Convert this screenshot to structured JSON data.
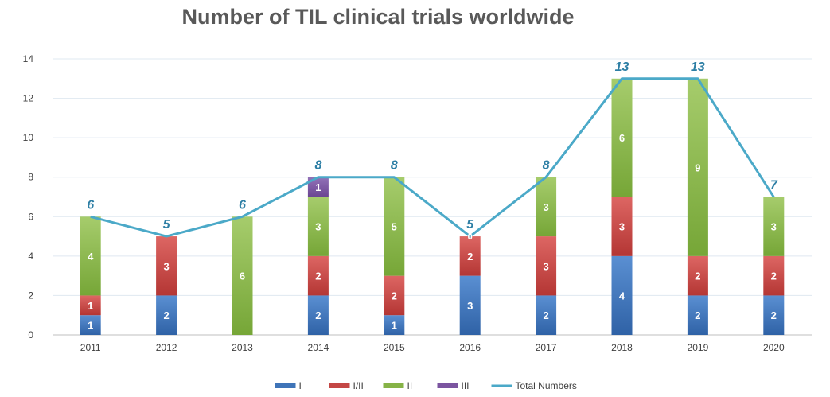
{
  "chart_data": {
    "type": "bar",
    "title": "Number of TIL clinical trials worldwide",
    "categories": [
      "2011",
      "2012",
      "2013",
      "2014",
      "2015",
      "2016",
      "2017",
      "2018",
      "2019",
      "2020"
    ],
    "series": [
      {
        "name": "I",
        "color": "#3f74b8",
        "values": [
          1,
          2,
          0,
          2,
          1,
          3,
          2,
          4,
          2,
          2
        ]
      },
      {
        "name": "I/II",
        "color": "#c44745",
        "values": [
          1,
          3,
          0,
          2,
          2,
          2,
          3,
          3,
          2,
          2
        ]
      },
      {
        "name": "II",
        "color": "#86b347",
        "values": [
          4,
          0,
          6,
          3,
          5,
          0,
          3,
          6,
          9,
          3
        ]
      },
      {
        "name": "III",
        "color": "#7b55a0",
        "values": [
          0,
          0,
          0,
          1,
          0,
          0,
          0,
          0,
          0,
          0
        ]
      }
    ],
    "line": {
      "name": "Total Numbers",
      "color": "#4ba9c8",
      "values": [
        6,
        5,
        6,
        8,
        8,
        5,
        8,
        13,
        13,
        7
      ]
    },
    "stack_label_note": "0",
    "ylim": [
      0,
      14
    ],
    "yticks": [
      0,
      2,
      4,
      6,
      8,
      10,
      12,
      14
    ],
    "grid": true,
    "legend": "bottom-center"
  }
}
